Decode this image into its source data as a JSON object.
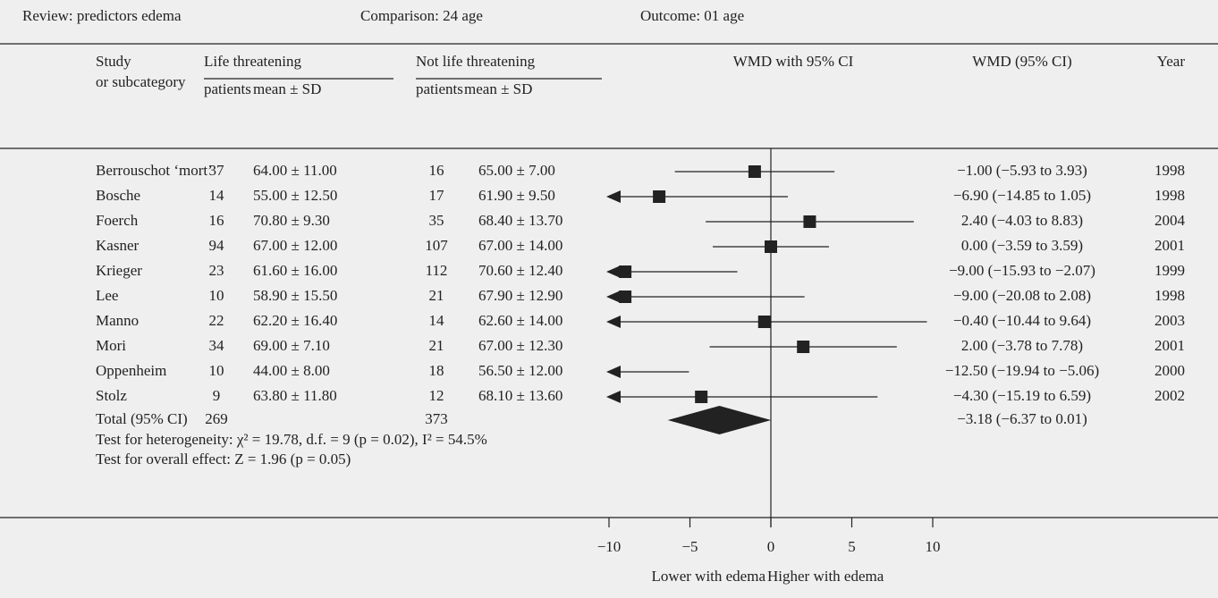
{
  "chart_data": {
    "type": "forest",
    "review": "Review: predictors edema",
    "comparison": "Comparison: 24 age",
    "outcome": "Outcome: 01 age",
    "header": {
      "study": "Study",
      "study2": "or subcategory",
      "group1": "Life threatening",
      "group2": "Not life threatening",
      "patients1": "patients",
      "mean1": "mean ± SD",
      "patients2": "patients",
      "mean2": "mean ± SD",
      "plot": "WMD with 95% CI",
      "wmd": "WMD (95% CI)",
      "year": "Year"
    },
    "categories": [
      "Berrouschot ‘mort’",
      "Bosche",
      "Foerch",
      "Kasner",
      "Krieger",
      "Lee",
      "Manno",
      "Mori",
      "Oppenheim",
      "Stolz"
    ],
    "life_patients": [
      37,
      14,
      16,
      94,
      23,
      10,
      22,
      34,
      10,
      9
    ],
    "life_mean_sd": [
      "64.00 ± 11.00",
      "55.00 ± 12.50",
      "70.80 ± 9.30",
      "67.00 ± 12.00",
      "61.60 ± 16.00",
      "58.90 ± 15.50",
      "62.20 ± 16.40",
      "69.00 ± 7.10",
      "44.00 ± 8.00",
      "63.80 ± 11.80"
    ],
    "not_patients": [
      16,
      17,
      35,
      107,
      112,
      21,
      14,
      21,
      18,
      12
    ],
    "not_mean_sd": [
      "65.00 ± 7.00",
      "61.90 ± 9.50",
      "68.40 ± 13.70",
      "67.00 ± 14.00",
      "70.60 ± 12.40",
      "67.90 ± 12.90",
      "62.60 ± 14.00",
      "67.00 ± 12.30",
      "56.50 ± 12.00",
      "68.10 ± 13.60"
    ],
    "values": [
      -1.0,
      -6.9,
      2.4,
      0.0,
      -9.0,
      -9.0,
      -0.4,
      2.0,
      -12.5,
      -4.3
    ],
    "ci_lower": [
      -5.93,
      -14.85,
      -4.03,
      -3.59,
      -15.93,
      -20.08,
      -10.44,
      -3.78,
      -19.94,
      -15.19
    ],
    "ci_upper": [
      3.93,
      1.05,
      8.83,
      3.59,
      -2.07,
      2.08,
      9.64,
      7.78,
      -5.06,
      6.59
    ],
    "value_labels": [
      "−1.00 (−5.93 to 3.93)",
      "−6.90 (−14.85 to 1.05)",
      "2.40 (−4.03 to 8.83)",
      "0.00 (−3.59 to 3.59)",
      "−9.00 (−15.93 to −2.07)",
      "−9.00 (−20.08 to 2.08)",
      "−0.40 (−10.44 to 9.64)",
      "2.00 (−3.78 to 7.78)",
      "−12.50 (−19.94 to −5.06)",
      "−4.30 (−15.19 to 6.59)"
    ],
    "years": [
      1998,
      1998,
      2004,
      2001,
      1999,
      1998,
      2003,
      2001,
      2000,
      2002
    ],
    "total": {
      "label": "Total (95% CI)",
      "life_patients": 269,
      "not_patients": 373,
      "value": -3.18,
      "ci_lower": -6.37,
      "ci_upper": 0.01,
      "value_label": "−3.18 (−6.37 to 0.01)"
    },
    "heterogeneity": "Test for heterogeneity: χ² = 19.78, d.f. = 9 (p = 0.02), I² = 54.5%",
    "overall": "Test for overall effect: Z = 1.96 (p = 0.05)",
    "xlim": [
      -10,
      10
    ],
    "xticks": [
      {
        "value": -10,
        "label": "−10"
      },
      {
        "value": -5,
        "label": "−5"
      },
      0,
      5,
      10
    ],
    "xlabel_left": "Lower with edema",
    "xlabel_right": "Higher with edema",
    "color": "#222222"
  }
}
